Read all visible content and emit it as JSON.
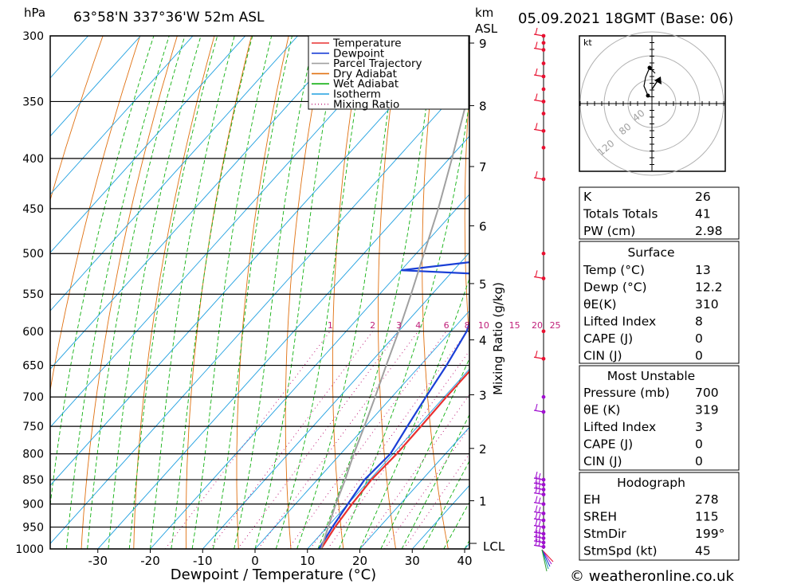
{
  "header": {
    "unit_hpa": "hPa",
    "location": "63°58'N  337°36'W  52m  ASL",
    "unit_km": "km",
    "unit_asl": "ASL",
    "datetime": "05.09.2021  18GMT  (Base: 06)"
  },
  "axes": {
    "xlabel": "Dewpoint / Temperature (°C)",
    "mixing_label": "Mixing Ratio (g/kg)",
    "lcl_label": "LCL",
    "pressure_ticks": [
      300,
      350,
      400,
      450,
      500,
      550,
      600,
      650,
      700,
      750,
      800,
      850,
      900,
      950,
      1000
    ],
    "temp_ticks": [
      -30,
      -20,
      -10,
      0,
      10,
      20,
      30,
      40
    ],
    "km_ticks": [
      1,
      2,
      3,
      4,
      5,
      6,
      7,
      8,
      9
    ],
    "mixing_ticks": [
      "1",
      "2",
      "3",
      "4",
      "6",
      "8",
      "10",
      "15",
      "20",
      "25"
    ]
  },
  "legend": [
    {
      "label": "Temperature",
      "color": "#e83030"
    },
    {
      "label": "Dewpoint",
      "color": "#1a3fd6"
    },
    {
      "label": "Parcel Trajectory",
      "color": "#a0a0a0"
    },
    {
      "label": "Dry Adiabat",
      "color": "#e07010"
    },
    {
      "label": "Wet Adiabat",
      "color": "#10b010"
    },
    {
      "label": "Isotherm",
      "color": "#1e9fe0"
    },
    {
      "label": "Mixing Ratio",
      "color": "#c0207a"
    }
  ],
  "chart_data": {
    "type": "line",
    "title": "",
    "xlabel": "Dewpoint / Temperature (°C)",
    "ylabel": "hPa",
    "xlim": [
      -40,
      40
    ],
    "ylim": [
      1000,
      300
    ],
    "series": [
      {
        "name": "Temperature",
        "color": "#e83030",
        "points": [
          [
            1000,
            12.6
          ],
          [
            950,
            11.5
          ],
          [
            900,
            10.8
          ],
          [
            850,
            10.3
          ],
          [
            800,
            10.7
          ],
          [
            750,
            10.6
          ],
          [
            700,
            10.4
          ],
          [
            650,
            10.4
          ],
          [
            600,
            10.5
          ],
          [
            550,
            10.0
          ],
          [
            500,
            9.8
          ],
          [
            470,
            8.8
          ],
          [
            450,
            7.0
          ],
          [
            420,
            4.5
          ],
          [
            400,
            2.0
          ],
          [
            380,
            -2.5
          ],
          [
            350,
            -7.5
          ],
          [
            330,
            -11.0
          ],
          [
            300,
            -15.0
          ]
        ]
      },
      {
        "name": "Dewpoint",
        "color": "#1a3fd6",
        "points": [
          [
            1000,
            12.2
          ],
          [
            950,
            11.0
          ],
          [
            900,
            10.0
          ],
          [
            850,
            9.0
          ],
          [
            800,
            9.5
          ],
          [
            790,
            9.2
          ],
          [
            750,
            8.0
          ],
          [
            700,
            6.5
          ],
          [
            650,
            5.0
          ],
          [
            600,
            3.0
          ],
          [
            550,
            -1.0
          ],
          [
            525,
            -3.0
          ],
          [
            520,
            -20.0
          ],
          [
            510,
            -8.0
          ],
          [
            500,
            -8.5
          ],
          [
            450,
            -11.0
          ],
          [
            420,
            -13.5
          ],
          [
            410,
            -17.0
          ],
          [
            400,
            -18.5
          ],
          [
            360,
            -21.0
          ],
          [
            350,
            -24.5
          ],
          [
            330,
            -25.0
          ],
          [
            300,
            -36.0
          ]
        ]
      },
      {
        "name": "Parcel Trajectory",
        "color": "#a0a0a0",
        "points": [
          [
            1000,
            12.6
          ],
          [
            950,
            10.2
          ],
          [
            900,
            7.7
          ],
          [
            850,
            5.3
          ],
          [
            800,
            2.5
          ],
          [
            750,
            -0.2
          ],
          [
            700,
            -3.2
          ],
          [
            650,
            -6.5
          ],
          [
            600,
            -10.0
          ],
          [
            550,
            -14.0
          ],
          [
            500,
            -18.5
          ],
          [
            450,
            -23.5
          ],
          [
            400,
            -29.5
          ],
          [
            350,
            -36.5
          ],
          [
            300,
            -44.0
          ]
        ]
      }
    ],
    "grid": true
  },
  "hodograph": {
    "unit": "kt",
    "ring_labels": [
      "40",
      "80",
      "120"
    ]
  },
  "indices": {
    "top": [
      {
        "label": "K",
        "value": "26"
      },
      {
        "label": "Totals Totals",
        "value": "41"
      },
      {
        "label": "PW (cm)",
        "value": "2.98"
      }
    ],
    "surface": {
      "title": "Surface",
      "rows": [
        {
          "label": "Temp (°C)",
          "value": "13"
        },
        {
          "label": "Dewp (°C)",
          "value": "12.2"
        },
        {
          "label": "θE(K)",
          "value": "310"
        },
        {
          "label": "Lifted Index",
          "value": "8"
        },
        {
          "label": "CAPE (J)",
          "value": "0"
        },
        {
          "label": "CIN (J)",
          "value": "0"
        }
      ]
    },
    "most_unstable": {
      "title": "Most Unstable",
      "rows": [
        {
          "label": "Pressure (mb)",
          "value": "700"
        },
        {
          "label": "θE (K)",
          "value": "319"
        },
        {
          "label": "Lifted Index",
          "value": "3"
        },
        {
          "label": "CAPE (J)",
          "value": "0"
        },
        {
          "label": "CIN (J)",
          "value": "0"
        }
      ]
    },
    "hodograph_params": {
      "title": "Hodograph",
      "rows": [
        {
          "label": "EH",
          "value": "278"
        },
        {
          "label": "SREH",
          "value": "115"
        },
        {
          "label": "StmDir",
          "value": "199°"
        },
        {
          "label": "StmSpd (kt)",
          "value": "45"
        }
      ]
    }
  },
  "copyright": "© weatheronline.co.uk"
}
